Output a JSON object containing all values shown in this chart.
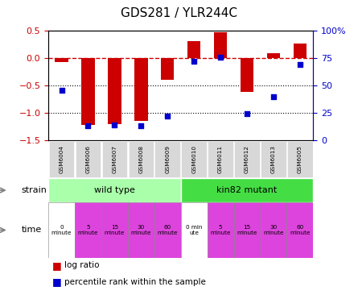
{
  "title": "GDS281 / YLR244C",
  "samples": [
    "GSM6004",
    "GSM6006",
    "GSM6007",
    "GSM6008",
    "GSM6009",
    "GSM6010",
    "GSM6011",
    "GSM6012",
    "GSM6013",
    "GSM6005"
  ],
  "log_ratio": [
    -0.07,
    -1.22,
    -1.2,
    -1.15,
    -0.4,
    0.32,
    0.47,
    -0.62,
    0.1,
    0.27
  ],
  "percentile": [
    46,
    13,
    14,
    13,
    22,
    72,
    76,
    24,
    40,
    69
  ],
  "bar_color": "#cc0000",
  "dot_color": "#0000cc",
  "ylim_left": [
    -1.5,
    0.5
  ],
  "ylim_right": [
    0,
    100
  ],
  "yticks_left": [
    0.5,
    0.0,
    -0.5,
    -1.0,
    -1.5
  ],
  "yticks_right": [
    100,
    75,
    50,
    25,
    0
  ],
  "dotted_lines": [
    -0.5,
    -1.0
  ],
  "strain_labels": [
    "wild type",
    "kin82 mutant"
  ],
  "strain_colors": [
    "#aaffaa",
    "#44dd44"
  ],
  "time_labels": [
    "0\nminute",
    "5\nminute",
    "15\nminute",
    "30\nminute",
    "60\nminute",
    "0 min\nute",
    "5\nminute",
    "15\nminute",
    "30\nminute",
    "60\nminute"
  ],
  "time_colors": [
    "white",
    "#dd44dd",
    "#dd44dd",
    "#dd44dd",
    "#dd44dd",
    "white",
    "#dd44dd",
    "#dd44dd",
    "#dd44dd",
    "#dd44dd"
  ],
  "legend_log_ratio": "log ratio",
  "legend_percentile": "percentile rank within the sample",
  "tick_color_left": "#cc0000",
  "tick_color_right": "#0000cc",
  "bar_width": 0.5
}
